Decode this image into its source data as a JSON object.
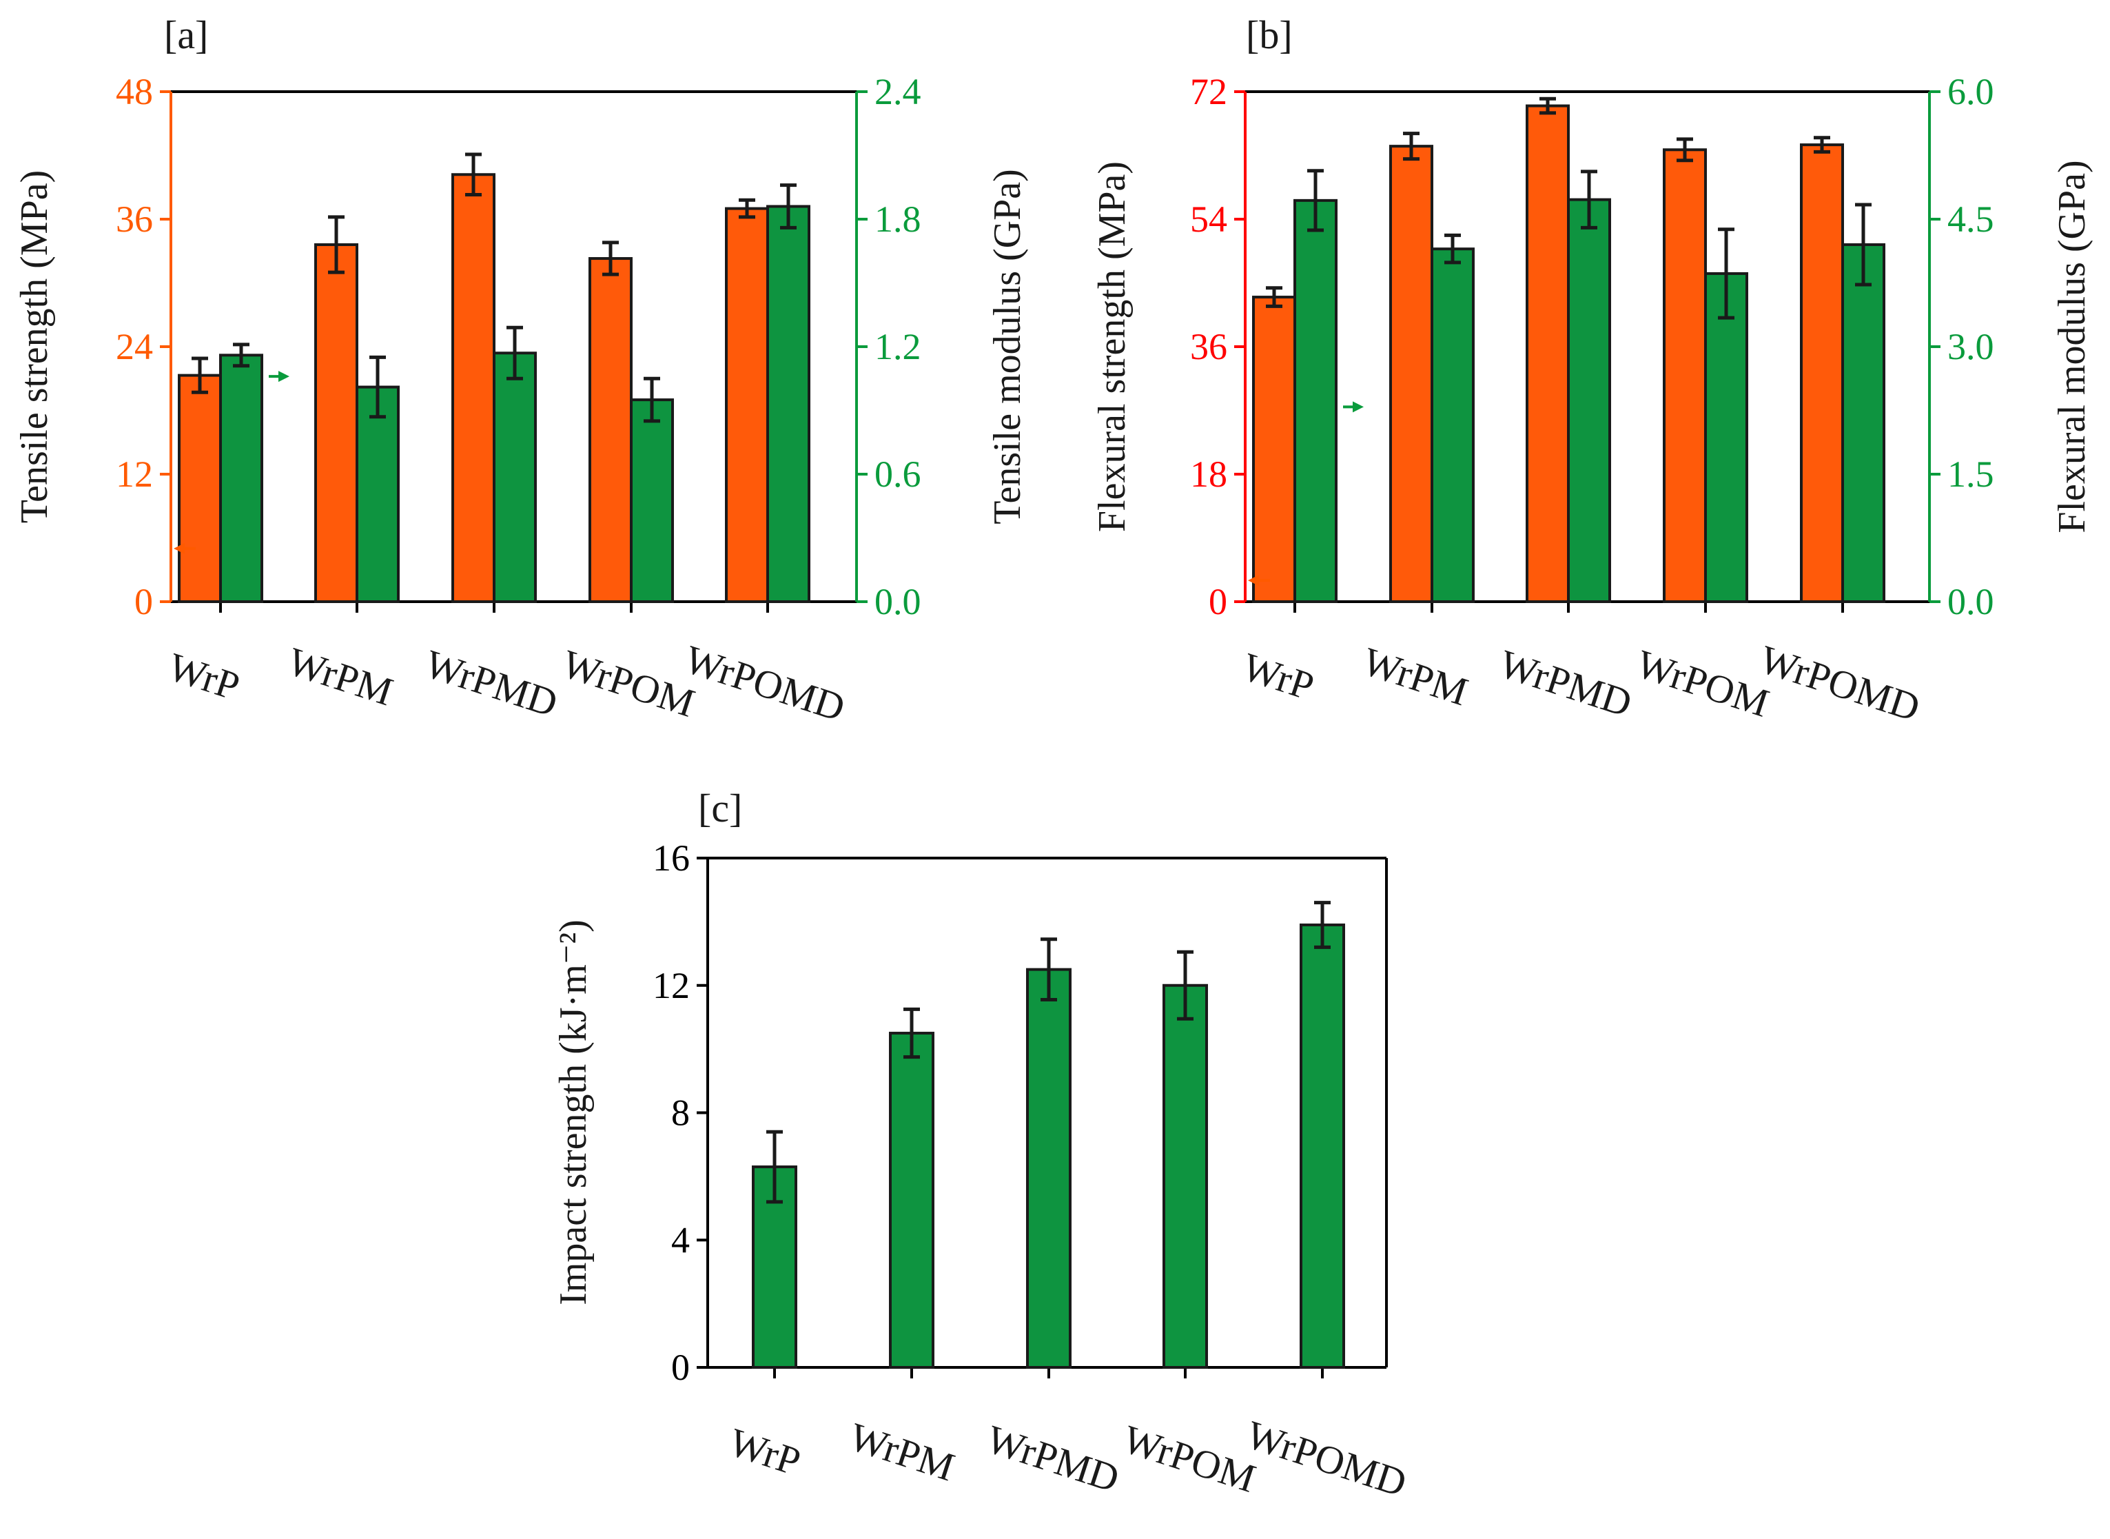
{
  "colors": {
    "orange": "#FF5A00",
    "red": "#FF0000",
    "green": "#0A9B3C",
    "black": "#000000",
    "bar_orange": "#FF5A0A",
    "bar_green": "#0E9440",
    "text": "#1a1a1a"
  },
  "chart_data": [
    {
      "id": "a",
      "type": "bar",
      "panel_label": "[a]",
      "categories": [
        "WrP",
        "WrPM",
        "WrPMD",
        "WrPOM",
        "WrPOMD"
      ],
      "left_axis": {
        "label": "Tensile strength (MPa)",
        "ylim": [
          0,
          48
        ],
        "ticks": [
          0,
          12,
          24,
          36,
          48
        ],
        "tick_labels": [
          "0",
          "12",
          "24",
          "36",
          "48"
        ],
        "color_key": "orange"
      },
      "right_axis": {
        "label": "Tensile modulus (GPa)",
        "ylim": [
          0,
          2.4
        ],
        "ticks": [
          0,
          0.6,
          1.2,
          1.8,
          2.4
        ],
        "tick_labels": [
          "0.0",
          "0.6",
          "1.2",
          "1.8",
          "2.4"
        ],
        "color_key": "green"
      },
      "series": [
        {
          "name": "Tensile strength",
          "axis": "left",
          "color_key": "bar_orange",
          "values": [
            21.3,
            33.6,
            40.2,
            32.3,
            37.0
          ],
          "errors": [
            1.6,
            2.6,
            1.9,
            1.5,
            0.8
          ]
        },
        {
          "name": "Tensile modulus",
          "axis": "right",
          "color_key": "bar_green",
          "values": [
            1.16,
            1.01,
            1.17,
            0.95,
            1.86
          ],
          "errors": [
            0.05,
            0.14,
            0.12,
            0.1,
            0.1
          ]
        }
      ],
      "arrows": [
        {
          "points_to": "left",
          "value": 5,
          "near": "first-orange",
          "color_key": "orange"
        },
        {
          "points_to": "right",
          "value": 21.2,
          "near": "first-green",
          "color_key": "green"
        }
      ]
    },
    {
      "id": "b",
      "type": "bar",
      "panel_label": "[b]",
      "categories": [
        "WrP",
        "WrPM",
        "WrPMD",
        "WrPOM",
        "WrPOMD"
      ],
      "left_axis": {
        "label": "Flexural strength (MPa)",
        "ylim": [
          0,
          72
        ],
        "ticks": [
          0,
          18,
          36,
          54,
          72
        ],
        "tick_labels": [
          "0",
          "18",
          "36",
          "54",
          "72"
        ],
        "color_key": "red"
      },
      "right_axis": {
        "label": "Flexural modulus (GPa)",
        "ylim": [
          0,
          6.0
        ],
        "ticks": [
          0,
          1.5,
          3.0,
          4.5,
          6.0
        ],
        "tick_labels": [
          "0.0",
          "1.5",
          "3.0",
          "4.5",
          "6.0"
        ],
        "color_key": "green"
      },
      "series": [
        {
          "name": "Flexural strength",
          "axis": "left",
          "color_key": "bar_orange",
          "values": [
            43.0,
            64.3,
            70.0,
            63.8,
            64.5
          ],
          "errors": [
            1.3,
            1.8,
            1.0,
            1.5,
            1.0
          ]
        },
        {
          "name": "Flexural modulus",
          "axis": "right",
          "color_key": "bar_green",
          "values": [
            4.72,
            4.15,
            4.73,
            3.86,
            4.2
          ],
          "errors": [
            0.35,
            0.16,
            0.33,
            0.52,
            0.47
          ]
        }
      ],
      "arrows": [
        {
          "points_to": "left",
          "value": 3,
          "near": "first-orange",
          "color_key": "orange"
        },
        {
          "points_to": "right",
          "value": 27.5,
          "near": "first-green",
          "color_key": "green"
        }
      ]
    },
    {
      "id": "c",
      "type": "bar",
      "panel_label": "[c]",
      "categories": [
        "WrP",
        "WrPM",
        "WrPMD",
        "WrPOM",
        "WrPOMD"
      ],
      "left_axis": {
        "label": "Impact strength (kJ·m⁻²)",
        "ylim": [
          0,
          16
        ],
        "ticks": [
          0,
          4,
          8,
          12,
          16
        ],
        "tick_labels": [
          "0",
          "4",
          "8",
          "12",
          "16"
        ],
        "color_key": "black"
      },
      "series": [
        {
          "name": "Impact strength",
          "axis": "left",
          "color_key": "bar_green",
          "values": [
            6.3,
            10.5,
            12.5,
            12.0,
            13.9
          ],
          "errors": [
            1.1,
            0.75,
            0.95,
            1.05,
            0.7
          ]
        }
      ]
    }
  ]
}
